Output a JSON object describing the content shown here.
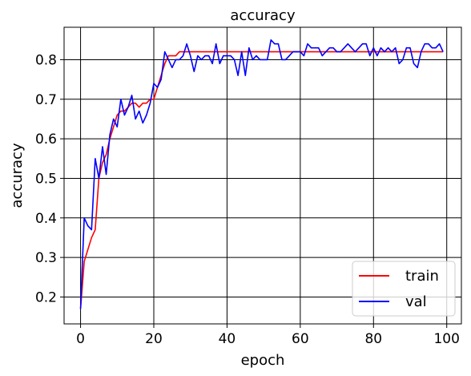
{
  "chart_data": {
    "type": "line",
    "title": "accuracy",
    "xlabel": "epoch",
    "ylabel": "accuracy",
    "xlim": [
      -4.5,
      104
    ],
    "ylim": [
      0.132,
      0.882
    ],
    "xticks": [
      0,
      20,
      40,
      60,
      80,
      100
    ],
    "yticks": [
      0.2,
      0.3,
      0.4,
      0.5,
      0.6,
      0.7,
      0.8
    ],
    "xtick_labels": [
      "0",
      "20",
      "40",
      "60",
      "80",
      "100"
    ],
    "ytick_labels": [
      "0.2",
      "0.3",
      "0.4",
      "0.5",
      "0.6",
      "0.7",
      "0.8"
    ],
    "grid": true,
    "legend_position": "lower-right",
    "series": [
      {
        "name": "train",
        "color": "#ff0000",
        "x": [
          0,
          1,
          2,
          3,
          4,
          5,
          6,
          7,
          8,
          9,
          10,
          11,
          12,
          13,
          14,
          15,
          16,
          17,
          18,
          19,
          20,
          21,
          22,
          23,
          24,
          25,
          26,
          27,
          28,
          29,
          30,
          31,
          32,
          33,
          34,
          35,
          36,
          37,
          38,
          39,
          40,
          41,
          42,
          43,
          44,
          45,
          46,
          47,
          48,
          49,
          50,
          51,
          52,
          53,
          54,
          55,
          56,
          57,
          58,
          59,
          60,
          61,
          62,
          63,
          64,
          65,
          66,
          67,
          68,
          69,
          70,
          71,
          72,
          73,
          74,
          75,
          76,
          77,
          78,
          79,
          80,
          81,
          82,
          83,
          84,
          85,
          86,
          87,
          88,
          89,
          90,
          91,
          92,
          93,
          94,
          95,
          96,
          97,
          98,
          99
        ],
        "values": [
          0.17,
          0.29,
          0.32,
          0.35,
          0.37,
          0.5,
          0.54,
          0.56,
          0.6,
          0.63,
          0.66,
          0.67,
          0.67,
          0.68,
          0.69,
          0.69,
          0.68,
          0.69,
          0.69,
          0.7,
          0.7,
          0.73,
          0.76,
          0.79,
          0.81,
          0.81,
          0.81,
          0.82,
          0.82,
          0.82,
          0.82,
          0.82,
          0.82,
          0.82,
          0.82,
          0.82,
          0.82,
          0.82,
          0.82,
          0.82,
          0.82,
          0.82,
          0.82,
          0.82,
          0.82,
          0.82,
          0.82,
          0.82,
          0.82,
          0.82,
          0.82,
          0.82,
          0.82,
          0.82,
          0.82,
          0.82,
          0.82,
          0.82,
          0.82,
          0.82,
          0.82,
          0.82,
          0.82,
          0.82,
          0.82,
          0.82,
          0.82,
          0.82,
          0.82,
          0.82,
          0.82,
          0.82,
          0.82,
          0.82,
          0.82,
          0.82,
          0.82,
          0.82,
          0.82,
          0.82,
          0.82,
          0.82,
          0.82,
          0.82,
          0.82,
          0.82,
          0.82,
          0.82,
          0.82,
          0.82,
          0.82,
          0.82,
          0.82,
          0.82,
          0.82,
          0.82,
          0.82,
          0.82,
          0.82,
          0.82
        ]
      },
      {
        "name": "val",
        "color": "#0000ff",
        "x": [
          0,
          1,
          2,
          3,
          4,
          5,
          6,
          7,
          8,
          9,
          10,
          11,
          12,
          13,
          14,
          15,
          16,
          17,
          18,
          19,
          20,
          21,
          22,
          23,
          24,
          25,
          26,
          27,
          28,
          29,
          30,
          31,
          32,
          33,
          34,
          35,
          36,
          37,
          38,
          39,
          40,
          41,
          42,
          43,
          44,
          45,
          46,
          47,
          48,
          49,
          50,
          51,
          52,
          53,
          54,
          55,
          56,
          57,
          58,
          59,
          60,
          61,
          62,
          63,
          64,
          65,
          66,
          67,
          68,
          69,
          70,
          71,
          72,
          73,
          74,
          75,
          76,
          77,
          78,
          79,
          80,
          81,
          82,
          83,
          84,
          85,
          86,
          87,
          88,
          89,
          90,
          91,
          92,
          93,
          94,
          95,
          96,
          97,
          98,
          99
        ],
        "values": [
          0.17,
          0.4,
          0.38,
          0.37,
          0.55,
          0.5,
          0.58,
          0.51,
          0.61,
          0.65,
          0.63,
          0.7,
          0.66,
          0.68,
          0.71,
          0.65,
          0.67,
          0.64,
          0.66,
          0.69,
          0.74,
          0.73,
          0.75,
          0.82,
          0.8,
          0.78,
          0.8,
          0.8,
          0.81,
          0.84,
          0.81,
          0.77,
          0.81,
          0.8,
          0.81,
          0.81,
          0.79,
          0.84,
          0.79,
          0.81,
          0.81,
          0.81,
          0.8,
          0.76,
          0.82,
          0.76,
          0.83,
          0.8,
          0.81,
          0.8,
          0.8,
          0.8,
          0.85,
          0.84,
          0.84,
          0.8,
          0.8,
          0.81,
          0.82,
          0.82,
          0.82,
          0.81,
          0.84,
          0.83,
          0.83,
          0.83,
          0.81,
          0.82,
          0.83,
          0.83,
          0.82,
          0.82,
          0.83,
          0.84,
          0.83,
          0.82,
          0.83,
          0.84,
          0.84,
          0.81,
          0.83,
          0.81,
          0.83,
          0.82,
          0.83,
          0.82,
          0.83,
          0.79,
          0.8,
          0.83,
          0.83,
          0.79,
          0.78,
          0.82,
          0.84,
          0.84,
          0.83,
          0.83,
          0.84,
          0.82
        ]
      }
    ]
  }
}
